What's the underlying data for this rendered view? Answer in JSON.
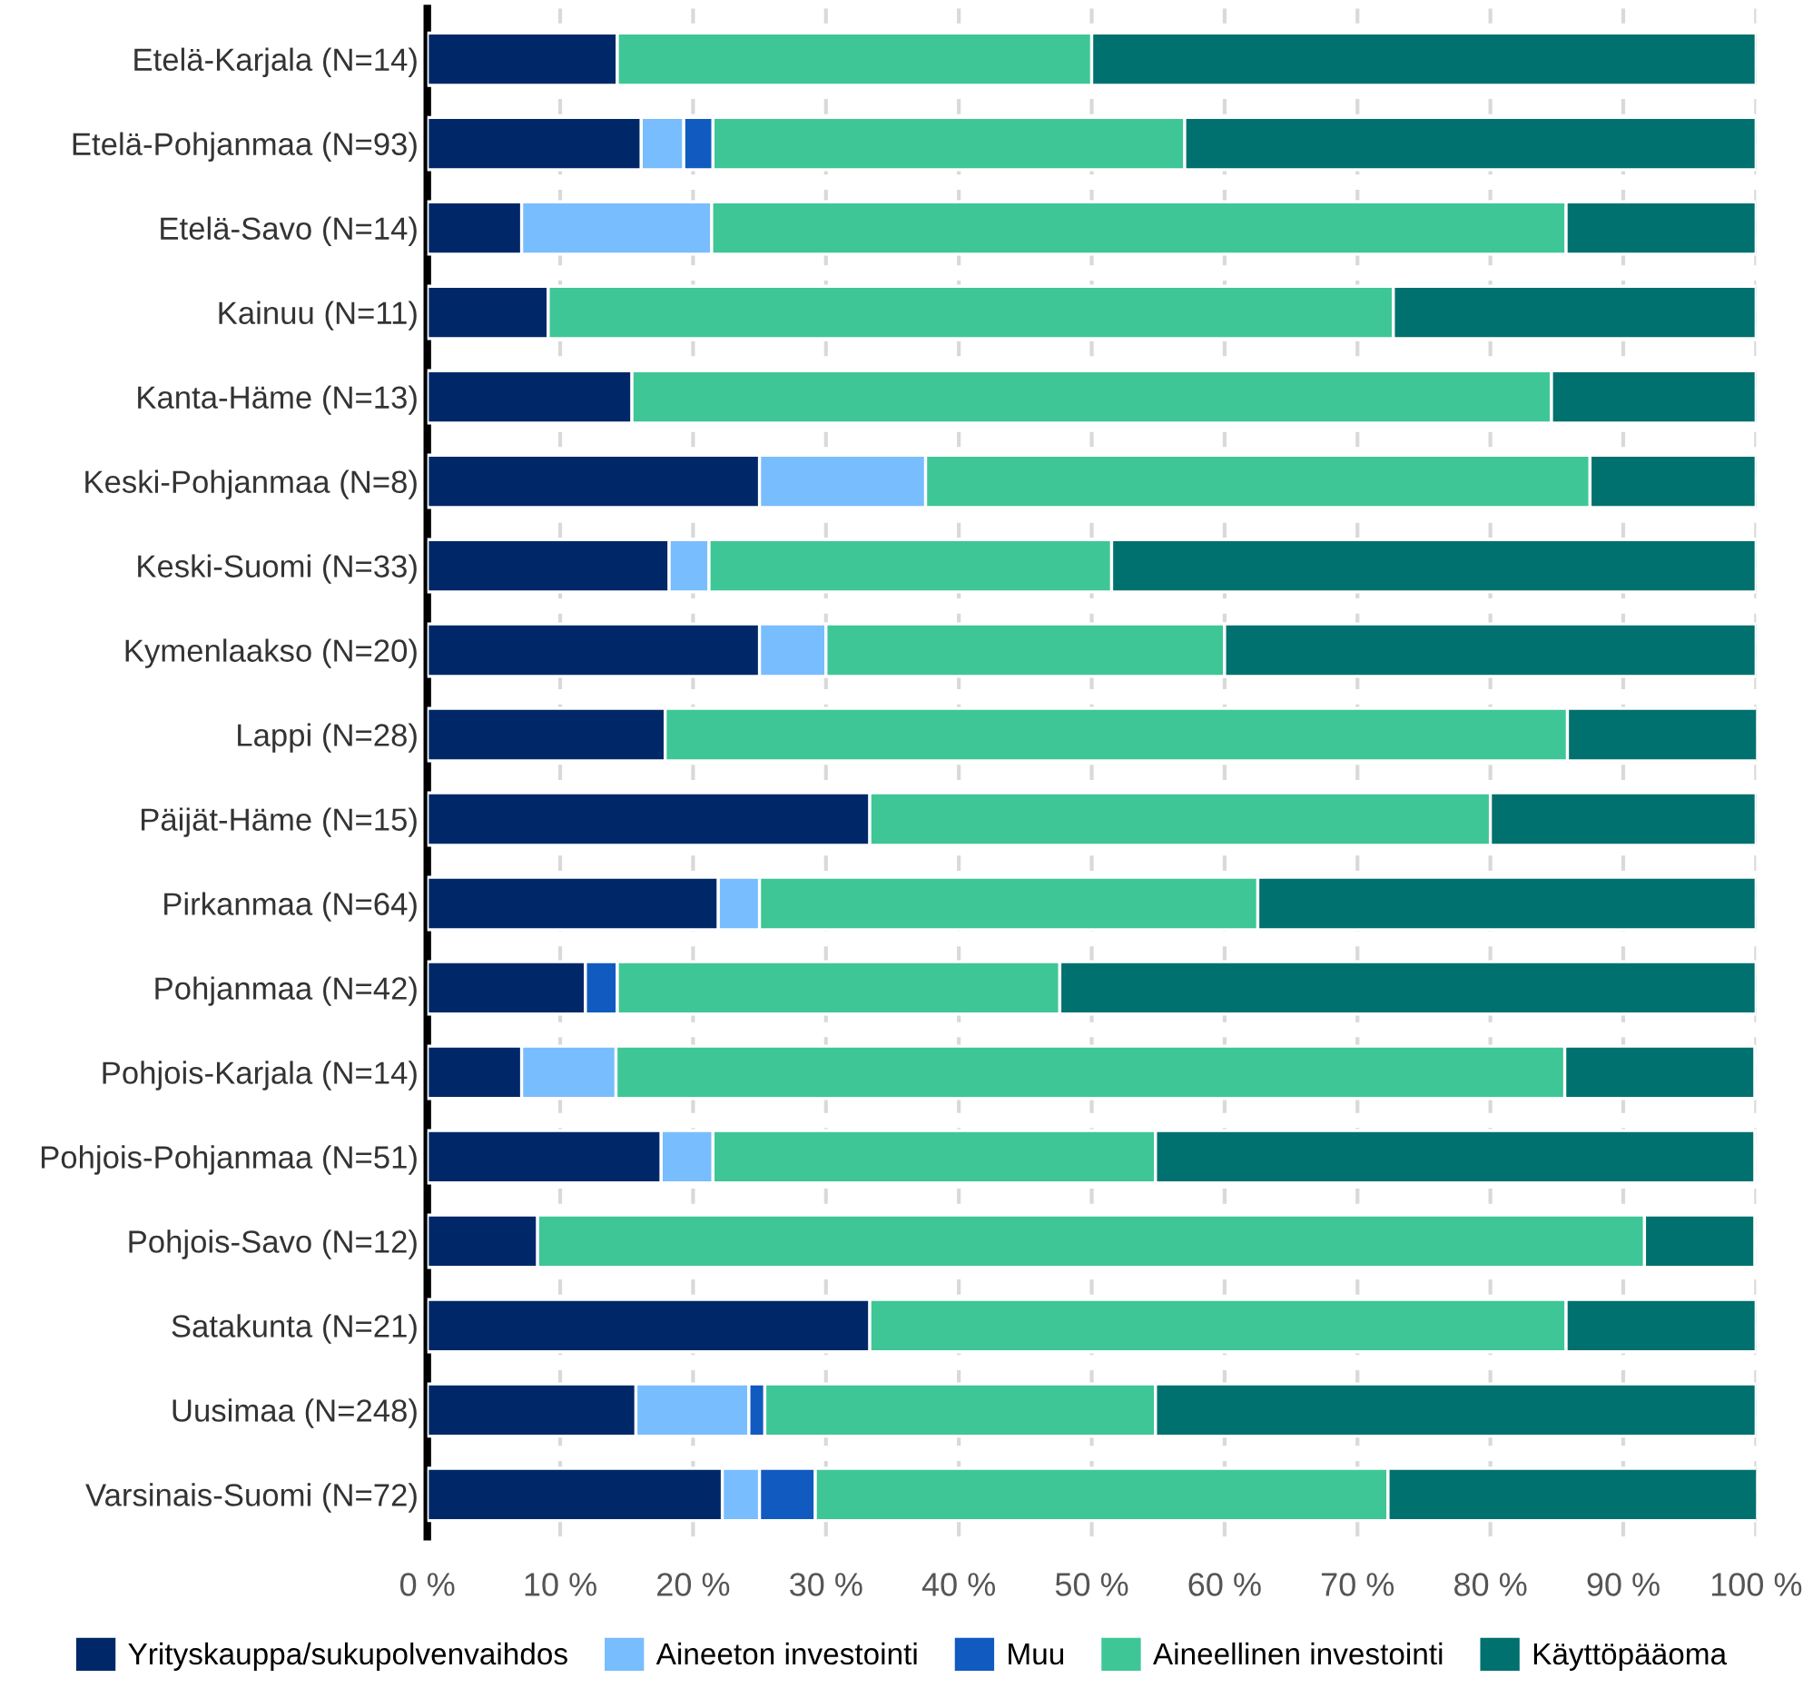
{
  "chart_data": {
    "type": "bar",
    "orientation": "horizontal",
    "stacked": true,
    "categories": [
      "Etelä-Karjala (N=14)",
      "Etelä-Pohjanmaa (N=93)",
      "Etelä-Savo (N=14)",
      "Kainuu (N=11)",
      "Kanta-Häme (N=13)",
      "Keski-Pohjanmaa (N=8)",
      "Keski-Suomi (N=33)",
      "Kymenlaakso (N=20)",
      "Lappi (N=28)",
      "Päijät-Häme (N=15)",
      "Pirkanmaa (N=64)",
      "Pohjanmaa (N=42)",
      "Pohjois-Karjala (N=14)",
      "Pohjois-Pohjanmaa (N=51)",
      "Pohjois-Savo (N=12)",
      "Satakunta (N=21)",
      "Uusimaa (N=248)",
      "Varsinais-Suomi (N=72)"
    ],
    "series": [
      {
        "name": "Yrityskauppa/sukupolvenvaihdos",
        "color": "#002868",
        "values": [
          14.3,
          16.1,
          7.1,
          9.1,
          15.4,
          25.0,
          18.2,
          25.0,
          17.9,
          33.3,
          21.9,
          11.9,
          7.1,
          17.6,
          8.3,
          33.3,
          15.7,
          22.2
        ]
      },
      {
        "name": "Aineeton investointi",
        "color": "#78bdfe",
        "values": [
          null,
          3.2,
          14.3,
          null,
          null,
          12.5,
          3.0,
          5.0,
          null,
          null,
          3.1,
          null,
          7.1,
          3.9,
          null,
          null,
          8.5,
          2.8
        ]
      },
      {
        "name": "Muu",
        "color": "#115ac0",
        "values": [
          null,
          2.2,
          null,
          null,
          null,
          null,
          null,
          null,
          null,
          null,
          null,
          2.4,
          null,
          null,
          null,
          null,
          1.2,
          4.2
        ]
      },
      {
        "name": "Aineellinen investointi",
        "color": "#3ec697",
        "values": [
          35.7,
          35.5,
          64.3,
          63.6,
          69.2,
          50.0,
          30.3,
          30.0,
          67.9,
          46.7,
          37.5,
          33.3,
          71.4,
          33.3,
          83.3,
          52.4,
          29.4,
          43.1
        ]
      },
      {
        "name": "Käyttöpääoma",
        "color": "#00716e",
        "values": [
          50.0,
          43.0,
          14.3,
          27.3,
          15.4,
          12.5,
          48.5,
          40.0,
          14.3,
          20.0,
          37.5,
          52.4,
          14.3,
          45.1,
          8.3,
          14.3,
          45.2,
          27.8
        ]
      }
    ],
    "xlim": [
      0,
      100
    ],
    "xticks": [
      {
        "value": 0,
        "label": "0 %"
      },
      {
        "value": 10,
        "label": "10 %"
      },
      {
        "value": 20,
        "label": "20 %"
      },
      {
        "value": 30,
        "label": "30 %"
      },
      {
        "value": 40,
        "label": "40 %"
      },
      {
        "value": 50,
        "label": "50 %"
      },
      {
        "value": 60,
        "label": "60 %"
      },
      {
        "value": 70,
        "label": "70 %"
      },
      {
        "value": 80,
        "label": "80 %"
      },
      {
        "value": 90,
        "label": "90 %"
      },
      {
        "value": 100,
        "label": "100 %"
      }
    ],
    "grid": "x",
    "legend": "bottom"
  }
}
